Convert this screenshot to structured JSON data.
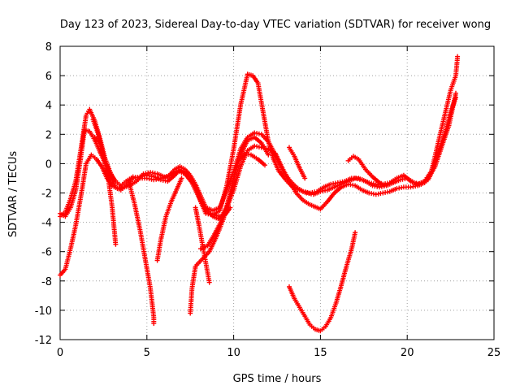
{
  "chart_data": {
    "type": "scatter",
    "title": "Day 123 of 2023, Sidereal Day-to-day VTEC variation (SDTVAR) for receiver wong",
    "xlabel": "GPS time / hours",
    "ylabel": "SDTVAR / TECUs",
    "xlim": [
      0,
      25
    ],
    "ylim": [
      -12,
      8
    ],
    "xticks": [
      "0",
      "5",
      "10",
      "15",
      "20",
      "25"
    ],
    "yticks": [
      "8",
      "6",
      "4",
      "2",
      "0",
      "-2",
      "-4",
      "-6",
      "-8",
      "-10",
      "-12"
    ],
    "grid": true,
    "marker": "plus",
    "color": "#ff0000",
    "series": [
      {
        "name": "track-1",
        "points": [
          [
            0.0,
            -3.6
          ],
          [
            0.3,
            -3.3
          ],
          [
            0.6,
            -2.4
          ],
          [
            0.9,
            -1.2
          ],
          [
            1.2,
            1.0
          ],
          [
            1.5,
            3.3
          ],
          [
            1.7,
            3.7
          ],
          [
            2.0,
            2.9
          ],
          [
            2.3,
            1.7
          ],
          [
            2.6,
            0.3
          ],
          [
            2.9,
            -0.9
          ],
          [
            3.2,
            -1.6
          ],
          [
            3.5,
            -1.8
          ],
          [
            3.8,
            -1.5
          ],
          [
            4.2,
            -1.0
          ],
          [
            4.6,
            -0.9
          ],
          [
            5.0,
            -0.8
          ],
          [
            5.4,
            -0.9
          ],
          [
            5.8,
            -1.1
          ],
          [
            6.2,
            -1.2
          ],
          [
            6.6,
            -0.8
          ],
          [
            6.9,
            -0.4
          ],
          [
            7.2,
            -0.6
          ],
          [
            7.5,
            -0.9
          ],
          [
            7.8,
            -1.6
          ],
          [
            8.1,
            -2.6
          ],
          [
            8.4,
            -3.4
          ],
          [
            8.8,
            -3.5
          ],
          [
            9.2,
            -3.2
          ],
          [
            9.6,
            -1.5
          ],
          [
            10.0,
            1.0
          ],
          [
            10.4,
            4.0
          ],
          [
            10.8,
            6.1
          ],
          [
            11.1,
            6.0
          ],
          [
            11.4,
            5.5
          ],
          [
            11.7,
            3.5
          ],
          [
            12.0,
            1.5
          ],
          [
            12.3,
            0.3
          ],
          [
            12.6,
            -0.5
          ],
          [
            13.0,
            -1.1
          ],
          [
            13.4,
            -1.6
          ],
          [
            13.8,
            -1.8
          ],
          [
            14.2,
            -2.0
          ],
          [
            14.6,
            -2.1
          ],
          [
            15.0,
            -1.9
          ],
          [
            15.4,
            -1.8
          ],
          [
            15.8,
            -1.6
          ],
          [
            16.2,
            -1.4
          ],
          [
            16.6,
            -1.2
          ],
          [
            17.0,
            -1.0
          ],
          [
            17.4,
            -1.1
          ],
          [
            17.8,
            -1.3
          ],
          [
            18.2,
            -1.4
          ],
          [
            18.6,
            -1.4
          ],
          [
            19.0,
            -1.3
          ],
          [
            19.4,
            -1.0
          ],
          [
            19.8,
            -0.8
          ],
          [
            20.2,
            -1.2
          ],
          [
            20.6,
            -1.4
          ],
          [
            21.0,
            -1.2
          ],
          [
            21.4,
            -0.5
          ],
          [
            21.8,
            0.8
          ],
          [
            22.2,
            2.2
          ],
          [
            22.5,
            3.5
          ],
          [
            22.8,
            4.5
          ]
        ]
      },
      {
        "name": "track-2",
        "points": [
          [
            0.0,
            -3.4
          ],
          [
            0.3,
            -3.6
          ],
          [
            0.6,
            -3.0
          ],
          [
            0.9,
            -1.8
          ],
          [
            1.2,
            0.5
          ],
          [
            1.4,
            2.3
          ],
          [
            1.7,
            2.2
          ],
          [
            2.0,
            1.6
          ],
          [
            2.3,
            0.8
          ],
          [
            2.6,
            0.0
          ],
          [
            2.9,
            -0.7
          ],
          [
            3.2,
            -1.2
          ],
          [
            3.5,
            -1.5
          ],
          [
            3.8,
            -1.2
          ],
          [
            4.2,
            -0.9
          ],
          [
            4.6,
            -1.0
          ],
          [
            5.0,
            -1.0
          ],
          [
            5.4,
            -1.1
          ],
          [
            5.8,
            -1.0
          ],
          [
            6.2,
            -0.9
          ],
          [
            6.6,
            -0.4
          ],
          [
            6.9,
            -0.2
          ],
          [
            7.2,
            -0.4
          ],
          [
            7.5,
            -0.8
          ],
          [
            7.8,
            -1.4
          ],
          [
            8.1,
            -2.2
          ],
          [
            8.4,
            -3.0
          ],
          [
            8.8,
            -3.2
          ],
          [
            9.2,
            -3.0
          ],
          [
            9.6,
            -1.8
          ],
          [
            10.0,
            -0.5
          ],
          [
            10.4,
            1.0
          ],
          [
            10.8,
            1.8
          ],
          [
            11.2,
            2.1
          ],
          [
            11.6,
            2.0
          ],
          [
            12.0,
            1.5
          ],
          [
            12.4,
            0.6
          ],
          [
            12.8,
            -0.4
          ],
          [
            13.2,
            -1.1
          ],
          [
            13.6,
            -1.6
          ],
          [
            14.0,
            -1.9
          ],
          [
            14.4,
            -2.0
          ],
          [
            14.8,
            -1.9
          ],
          [
            15.2,
            -1.6
          ],
          [
            15.6,
            -1.4
          ],
          [
            16.0,
            -1.3
          ],
          [
            16.4,
            -1.2
          ],
          [
            16.8,
            -1.0
          ],
          [
            17.2,
            -1.0
          ],
          [
            17.6,
            -1.2
          ],
          [
            18.0,
            -1.5
          ],
          [
            18.4,
            -1.6
          ],
          [
            18.8,
            -1.5
          ],
          [
            19.2,
            -1.3
          ],
          [
            19.6,
            -1.1
          ],
          [
            20.0,
            -1.0
          ],
          [
            20.4,
            -1.3
          ],
          [
            20.8,
            -1.4
          ],
          [
            21.2,
            -1.1
          ],
          [
            21.6,
            -0.2
          ],
          [
            22.0,
            1.2
          ],
          [
            22.4,
            2.6
          ],
          [
            22.8,
            4.8
          ]
        ]
      },
      {
        "name": "track-3",
        "points": [
          [
            0.0,
            -7.6
          ],
          [
            0.3,
            -7.2
          ],
          [
            0.6,
            -5.8
          ],
          [
            0.9,
            -4.2
          ],
          [
            1.2,
            -2.2
          ],
          [
            1.5,
            0.0
          ],
          [
            1.8,
            0.6
          ],
          [
            2.1,
            0.3
          ],
          [
            2.4,
            -0.2
          ],
          [
            2.7,
            -1.0
          ],
          [
            3.0,
            -1.5
          ],
          [
            3.3,
            -1.7
          ],
          [
            3.7,
            -1.6
          ],
          [
            4.0,
            -1.5
          ],
          [
            4.4,
            -1.2
          ],
          [
            4.8,
            -0.7
          ],
          [
            5.2,
            -0.6
          ],
          [
            5.6,
            -0.7
          ],
          [
            6.0,
            -0.9
          ],
          [
            6.4,
            -0.8
          ],
          [
            6.8,
            -0.5
          ],
          [
            7.2,
            -0.7
          ],
          [
            7.6,
            -1.3
          ],
          [
            8.0,
            -2.3
          ],
          [
            8.4,
            -3.1
          ],
          [
            8.8,
            -3.6
          ],
          [
            9.2,
            -3.8
          ],
          [
            9.6,
            -3.0
          ],
          [
            10.0,
            -1.8
          ],
          [
            10.4,
            -0.2
          ],
          [
            10.8,
            0.9
          ],
          [
            11.2,
            1.2
          ],
          [
            11.6,
            1.1
          ],
          [
            12.0,
            1.0
          ],
          [
            12.4,
            0.7
          ],
          [
            12.8,
            -0.3
          ],
          [
            13.2,
            -1.2
          ],
          [
            13.6,
            -2.0
          ],
          [
            14.0,
            -2.5
          ],
          [
            14.4,
            -2.8
          ],
          [
            14.8,
            -3.0
          ],
          [
            15.0,
            -3.1
          ],
          [
            15.4,
            -2.6
          ],
          [
            15.8,
            -2.0
          ],
          [
            16.2,
            -1.6
          ],
          [
            16.6,
            -1.4
          ],
          [
            17.0,
            -1.5
          ],
          [
            17.4,
            -1.8
          ],
          [
            17.8,
            -2.0
          ],
          [
            18.2,
            -2.1
          ],
          [
            18.6,
            -2.0
          ],
          [
            19.0,
            -1.9
          ],
          [
            19.4,
            -1.7
          ],
          [
            19.8,
            -1.6
          ],
          [
            20.2,
            -1.6
          ],
          [
            20.6,
            -1.5
          ],
          [
            21.0,
            -1.3
          ],
          [
            21.4,
            -0.5
          ],
          [
            21.8,
            1.5
          ],
          [
            22.2,
            3.5
          ],
          [
            22.5,
            5.0
          ],
          [
            22.8,
            6.0
          ],
          [
            22.9,
            7.3
          ]
        ]
      },
      {
        "name": "track-4",
        "points": [
          [
            1.9,
            3.0
          ],
          [
            2.2,
            2.0
          ],
          [
            2.5,
            0.5
          ],
          [
            2.8,
            -1.2
          ],
          [
            3.0,
            -3.0
          ],
          [
            3.2,
            -5.5
          ]
        ]
      },
      {
        "name": "track-5",
        "points": [
          [
            2.0,
            1.8
          ],
          [
            2.3,
            1.4
          ],
          [
            2.6,
            0.3
          ],
          [
            2.9,
            -0.6
          ],
          [
            3.1,
            -1.1
          ]
        ]
      },
      {
        "name": "track-6",
        "points": [
          [
            4.0,
            -1.4
          ],
          [
            4.3,
            -2.8
          ],
          [
            4.6,
            -4.5
          ],
          [
            4.9,
            -6.5
          ],
          [
            5.2,
            -8.5
          ],
          [
            5.4,
            -10.5
          ],
          [
            5.4,
            -10.9
          ]
        ]
      },
      {
        "name": "track-7",
        "points": [
          [
            5.6,
            -6.6
          ],
          [
            5.8,
            -5.2
          ],
          [
            6.1,
            -3.6
          ],
          [
            6.4,
            -2.6
          ],
          [
            6.7,
            -1.8
          ],
          [
            7.0,
            -1.0
          ]
        ]
      },
      {
        "name": "track-8",
        "points": [
          [
            7.5,
            -10.2
          ],
          [
            7.6,
            -8.5
          ],
          [
            7.8,
            -7.0
          ],
          [
            8.2,
            -6.5
          ],
          [
            8.6,
            -6.0
          ],
          [
            9.0,
            -5.0
          ],
          [
            9.4,
            -3.8
          ],
          [
            9.8,
            -2.0
          ],
          [
            10.2,
            0.0
          ],
          [
            10.6,
            0.7
          ],
          [
            11.0,
            0.6
          ],
          [
            11.4,
            0.3
          ],
          [
            11.8,
            -0.1
          ]
        ]
      },
      {
        "name": "track-9",
        "points": [
          [
            8.1,
            -5.8
          ],
          [
            8.5,
            -5.6
          ],
          [
            8.9,
            -4.8
          ],
          [
            9.3,
            -3.9
          ],
          [
            9.7,
            -2.6
          ],
          [
            10.0,
            -1.0
          ],
          [
            10.4,
            0.6
          ],
          [
            10.8,
            1.6
          ],
          [
            11.2,
            1.8
          ],
          [
            11.6,
            1.4
          ],
          [
            12.0,
            0.6
          ]
        ]
      },
      {
        "name": "track-10",
        "points": [
          [
            7.8,
            -3.0
          ],
          [
            8.0,
            -4.2
          ],
          [
            8.2,
            -5.5
          ],
          [
            8.4,
            -6.8
          ],
          [
            8.6,
            -8.1
          ]
        ]
      },
      {
        "name": "track-11",
        "points": [
          [
            8.9,
            -3.5
          ],
          [
            9.2,
            -3.6
          ],
          [
            9.5,
            -3.5
          ],
          [
            9.8,
            -3.0
          ]
        ]
      },
      {
        "name": "track-12",
        "points": [
          [
            13.2,
            -8.4
          ],
          [
            13.5,
            -9.2
          ],
          [
            13.8,
            -9.8
          ],
          [
            14.1,
            -10.4
          ],
          [
            14.4,
            -11.0
          ],
          [
            14.7,
            -11.3
          ],
          [
            15.0,
            -11.4
          ],
          [
            15.3,
            -11.1
          ],
          [
            15.6,
            -10.5
          ],
          [
            15.9,
            -9.5
          ],
          [
            16.2,
            -8.3
          ],
          [
            16.5,
            -7.0
          ],
          [
            16.8,
            -5.8
          ],
          [
            17.0,
            -4.7
          ]
        ]
      },
      {
        "name": "track-13",
        "points": [
          [
            13.2,
            1.1
          ],
          [
            13.5,
            0.5
          ],
          [
            13.8,
            -0.3
          ],
          [
            14.1,
            -1.0
          ]
        ]
      },
      {
        "name": "track-14",
        "points": [
          [
            16.6,
            0.2
          ],
          [
            16.9,
            0.5
          ],
          [
            17.2,
            0.3
          ],
          [
            17.6,
            -0.4
          ],
          [
            18.0,
            -0.9
          ],
          [
            18.4,
            -1.3
          ],
          [
            18.8,
            -1.5
          ]
        ]
      }
    ]
  }
}
